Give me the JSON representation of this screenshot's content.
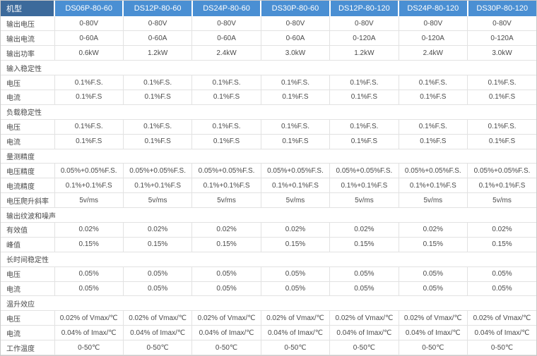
{
  "colors": {
    "header_label_bg": "#3c6a9b",
    "header_model_bg": "#4a8fd3",
    "header_text": "#ffffff",
    "body_text": "#4a4a4a",
    "grid_border": "#e2e2e2",
    "outer_border": "#c9c9c9",
    "row_bg": "#ffffff"
  },
  "table": {
    "model_label": "机型",
    "models": [
      "DS06P-80-60",
      "DS12P-80-60",
      "DS24P-80-60",
      "DS30P-80-60",
      "DS12P-80-120",
      "DS24P-80-120",
      "DS30P-80-120"
    ],
    "rows": [
      {
        "type": "data",
        "label": "输出电压",
        "values": [
          "0-80V",
          "0-80V",
          "0-80V",
          "0-80V",
          "0-80V",
          "0-80V",
          "0-80V"
        ]
      },
      {
        "type": "data",
        "label": "输出电流",
        "values": [
          "0-60A",
          "0-60A",
          "0-60A",
          "0-60A",
          "0-120A",
          "0-120A",
          "0-120A"
        ]
      },
      {
        "type": "data",
        "label": "输出功率",
        "values": [
          "0.6kW",
          "1.2kW",
          "2.4kW",
          "3.0kW",
          "1.2kW",
          "2.4kW",
          "3.0kW"
        ]
      },
      {
        "type": "section",
        "label": "输入稳定性"
      },
      {
        "type": "data",
        "label": "电压",
        "values": [
          "0.1%F.S.",
          "0.1%F.S.",
          "0.1%F.S.",
          "0.1%F.S.",
          "0.1%F.S.",
          "0.1%F.S.",
          "0.1%F.S."
        ]
      },
      {
        "type": "data",
        "label": "电流",
        "values": [
          "0.1%F.S",
          "0.1%F.S",
          "0.1%F.S",
          "0.1%F.S",
          "0.1%F.S",
          "0.1%F.S",
          "0.1%F.S"
        ]
      },
      {
        "type": "section",
        "label": "负载稳定性"
      },
      {
        "type": "data",
        "label": "电压",
        "values": [
          "0.1%F.S.",
          "0.1%F.S.",
          "0.1%F.S.",
          "0.1%F.S.",
          "0.1%F.S.",
          "0.1%F.S.",
          "0.1%F.S."
        ]
      },
      {
        "type": "data",
        "label": "电流",
        "values": [
          "0.1%F.S",
          "0.1%F.S",
          "0.1%F.S",
          "0.1%F.S",
          "0.1%F.S",
          "0.1%F.S",
          "0.1%F.S"
        ]
      },
      {
        "type": "section",
        "label": "量测精度"
      },
      {
        "type": "data",
        "label": "电压精度",
        "values": [
          "0.05%+0.05%F.S.",
          "0.05%+0.05%F.S.",
          "0.05%+0.05%F.S.",
          "0.05%+0.05%F.S.",
          "0.05%+0.05%F.S.",
          "0.05%+0.05%F.S.",
          "0.05%+0.05%F.S."
        ]
      },
      {
        "type": "data",
        "label": "电流精度",
        "values": [
          "0.1%+0.1%F.S",
          "0.1%+0.1%F.S",
          "0.1%+0.1%F.S",
          "0.1%+0.1%F.S",
          "0.1%+0.1%F.S",
          "0.1%+0.1%F.S",
          "0.1%+0.1%F.S"
        ]
      },
      {
        "type": "data",
        "label": "电压爬升斜率",
        "values": [
          "5v/ms",
          "5v/ms",
          "5v/ms",
          "5v/ms",
          "5v/ms",
          "5v/ms",
          "5v/ms"
        ]
      },
      {
        "type": "section",
        "label": "输出纹波和噪声"
      },
      {
        "type": "data",
        "label": "有效值",
        "values": [
          "0.02%",
          "0.02%",
          "0.02%",
          "0.02%",
          "0.02%",
          "0.02%",
          "0.02%"
        ]
      },
      {
        "type": "data",
        "label": "峰值",
        "values": [
          "0.15%",
          "0.15%",
          "0.15%",
          "0.15%",
          "0.15%",
          "0.15%",
          "0.15%"
        ]
      },
      {
        "type": "section",
        "label": "长时间稳定性"
      },
      {
        "type": "data",
        "label": "电压",
        "values": [
          "0.05%",
          "0.05%",
          "0.05%",
          "0.05%",
          "0.05%",
          "0.05%",
          "0.05%"
        ]
      },
      {
        "type": "data",
        "label": "电流",
        "values": [
          "0.05%",
          "0.05%",
          "0.05%",
          "0.05%",
          "0.05%",
          "0.05%",
          "0.05%"
        ]
      },
      {
        "type": "section",
        "label": "温升效应"
      },
      {
        "type": "data",
        "label": "电压",
        "values": [
          "0.02% of Vmax/℃",
          "0.02% of Vmax/℃",
          "0.02% of Vmax/℃",
          "0.02% of Vmax/℃",
          "0.02% of Vmax/℃",
          "0.02% of Vmax/℃",
          "0.02% of Vmax/℃"
        ]
      },
      {
        "type": "data",
        "label": "电流",
        "values": [
          "0.04% of Imax/℃",
          "0.04% of Imax/℃",
          "0.04% of Imax/℃",
          "0.04% of Imax/℃",
          "0.04% of Imax/℃",
          "0.04% of Imax/℃",
          "0.04% of Imax/℃"
        ]
      },
      {
        "type": "data",
        "label": "工作温度",
        "values": [
          "0-50℃",
          "0-50℃",
          "0-50℃",
          "0-50℃",
          "0-50℃",
          "0-50℃",
          "0-50℃"
        ]
      }
    ]
  }
}
